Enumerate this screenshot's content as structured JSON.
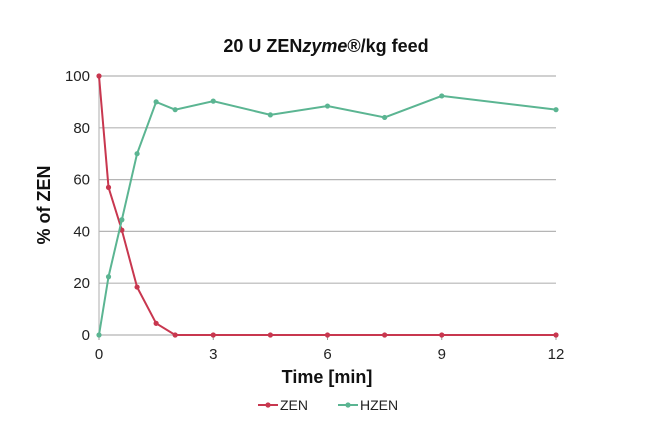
{
  "chart_data": {
    "type": "line",
    "title": "20 U ZENzyme®/kg feed",
    "title_parts": {
      "prefix": "20 U ZEN",
      "italic": "zyme",
      "suffix": "®/kg feed"
    },
    "xlabel": "Time [min]",
    "ylabel": "% of ZEN",
    "xlim": [
      0,
      12
    ],
    "ylim": [
      0,
      100
    ],
    "xticks": [
      0,
      3,
      6,
      9,
      12
    ],
    "yticks": [
      0,
      20,
      40,
      60,
      80,
      100
    ],
    "grid": "horizontal",
    "legend_position": "bottom",
    "series": [
      {
        "name": "ZEN",
        "color": "#c8374f",
        "x": [
          0,
          0.25,
          0.6,
          1,
          1.5,
          2,
          3,
          4.5,
          6,
          7.5,
          9,
          12
        ],
        "y": [
          100,
          57,
          40.5,
          18.5,
          4.5,
          0,
          0,
          0,
          0,
          0,
          0,
          0
        ]
      },
      {
        "name": "HZEN",
        "color": "#5bb592",
        "x": [
          0,
          0.25,
          0.6,
          1,
          1.5,
          2,
          3,
          4.5,
          6,
          7.5,
          9,
          12
        ],
        "y": [
          0,
          22.5,
          44.5,
          70,
          90,
          87,
          90.3,
          85,
          88.4,
          84,
          92.3,
          87
        ]
      }
    ]
  }
}
